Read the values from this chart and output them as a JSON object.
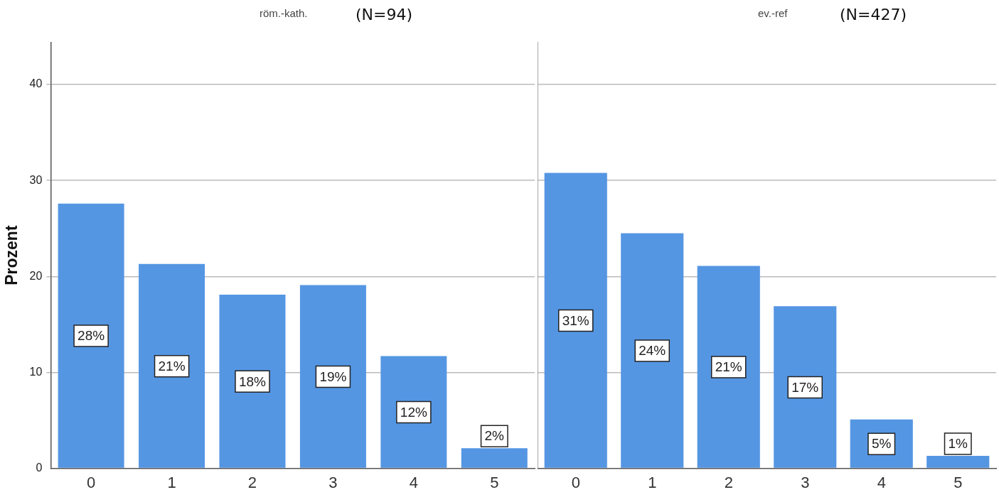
{
  "chart_data": [
    {
      "type": "bar",
      "title": "röm.-kath.",
      "subtitle": "(N=94)",
      "ylabel": "Prozent",
      "categories": [
        "0",
        "1",
        "2",
        "3",
        "4",
        "5"
      ],
      "values": [
        27.6,
        21.3,
        18.1,
        19.1,
        11.7,
        2.1
      ],
      "value_labels": [
        "28%",
        "21%",
        "18%",
        "19%",
        "12%",
        "2%"
      ],
      "color": "#5596e3",
      "ylim": [
        0,
        44.4
      ],
      "yticks": [
        0,
        10,
        20,
        30,
        40
      ],
      "grid": "y"
    },
    {
      "type": "bar",
      "title": "ev.-ref",
      "subtitle": "(N=427)",
      "categories": [
        "0",
        "1",
        "2",
        "3",
        "4",
        "5"
      ],
      "values": [
        30.8,
        24.5,
        21.1,
        16.9,
        5.1,
        1.3
      ],
      "value_labels": [
        "31%",
        "24%",
        "21%",
        "17%",
        "5%",
        "1%"
      ],
      "color": "#5596e3",
      "ylim": [
        0,
        44.4
      ],
      "yticks": [
        0,
        10,
        20,
        30,
        40
      ],
      "grid": "y",
      "tick_labels": "x"
    }
  ]
}
